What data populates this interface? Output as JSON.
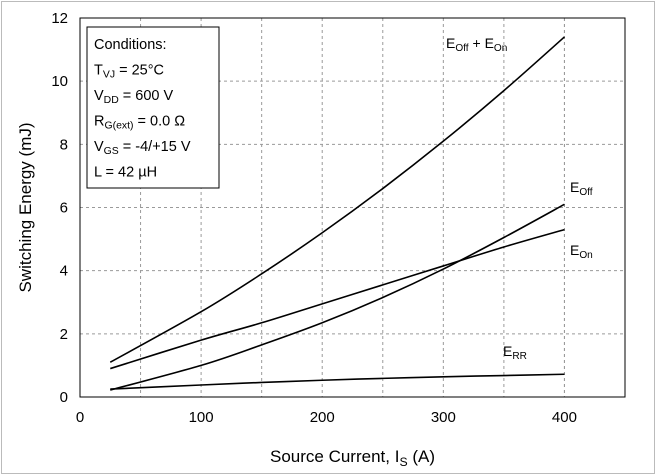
{
  "chart_data": {
    "type": "line",
    "title": "",
    "xlabel": {
      "main": "Source Current, I",
      "sub": "S",
      "tail": " (A)"
    },
    "ylabel": "Switching Energy (mJ)",
    "xlim": [
      0,
      450
    ],
    "ylim": [
      0,
      12
    ],
    "xticks": [
      0,
      100,
      200,
      300,
      400
    ],
    "yticks": [
      0,
      2,
      4,
      6,
      8,
      10,
      12
    ],
    "grid": true,
    "series": [
      {
        "name": "E_Off + E_On",
        "label_parts": [
          {
            "t": "E",
            "sub": false
          },
          {
            "t": "Off",
            "sub": true
          },
          {
            "t": " + E",
            "sub": false
          },
          {
            "t": "On",
            "sub": true
          }
        ],
        "x": [
          25,
          100,
          150,
          200,
          250,
          300,
          350,
          400
        ],
        "y": [
          1.1,
          2.7,
          3.9,
          5.2,
          6.6,
          8.1,
          9.7,
          11.4
        ]
      },
      {
        "name": "E_Off",
        "label_parts": [
          {
            "t": "E",
            "sub": false
          },
          {
            "t": "Off",
            "sub": true
          }
        ],
        "x": [
          25,
          100,
          150,
          200,
          250,
          300,
          350,
          400
        ],
        "y": [
          0.22,
          1.0,
          1.65,
          2.35,
          3.15,
          4.05,
          5.05,
          6.1
        ]
      },
      {
        "name": "E_On",
        "label_parts": [
          {
            "t": "E",
            "sub": false
          },
          {
            "t": "On",
            "sub": true
          }
        ],
        "x": [
          25,
          100,
          150,
          200,
          250,
          300,
          350,
          400
        ],
        "y": [
          0.9,
          1.8,
          2.35,
          2.95,
          3.55,
          4.15,
          4.75,
          5.3
        ]
      },
      {
        "name": "E_RR",
        "label_parts": [
          {
            "t": "E",
            "sub": false
          },
          {
            "t": "RR",
            "sub": true
          }
        ],
        "x": [
          25,
          100,
          150,
          200,
          250,
          300,
          350,
          400
        ],
        "y": [
          0.25,
          0.38,
          0.46,
          0.53,
          0.59,
          0.64,
          0.68,
          0.72
        ]
      }
    ],
    "conditions": [
      [
        {
          "t": "Conditions:",
          "sub": false
        }
      ],
      [
        {
          "t": "T",
          "sub": false
        },
        {
          "t": "VJ",
          "sub": true
        },
        {
          "t": " = 25°C",
          "sub": false
        }
      ],
      [
        {
          "t": "V",
          "sub": false
        },
        {
          "t": "DD",
          "sub": true
        },
        {
          "t": " = 600 V",
          "sub": false
        }
      ],
      [
        {
          "t": "R",
          "sub": false
        },
        {
          "t": "G(ext)",
          "sub": true
        },
        {
          "t": " = 0.0 Ω",
          "sub": false
        }
      ],
      [
        {
          "t": "V",
          "sub": false
        },
        {
          "t": "GS",
          "sub": true
        },
        {
          "t": " = -4/+15 V",
          "sub": false
        }
      ],
      [
        {
          "t": "L = 42 µH",
          "sub": false
        }
      ]
    ]
  }
}
